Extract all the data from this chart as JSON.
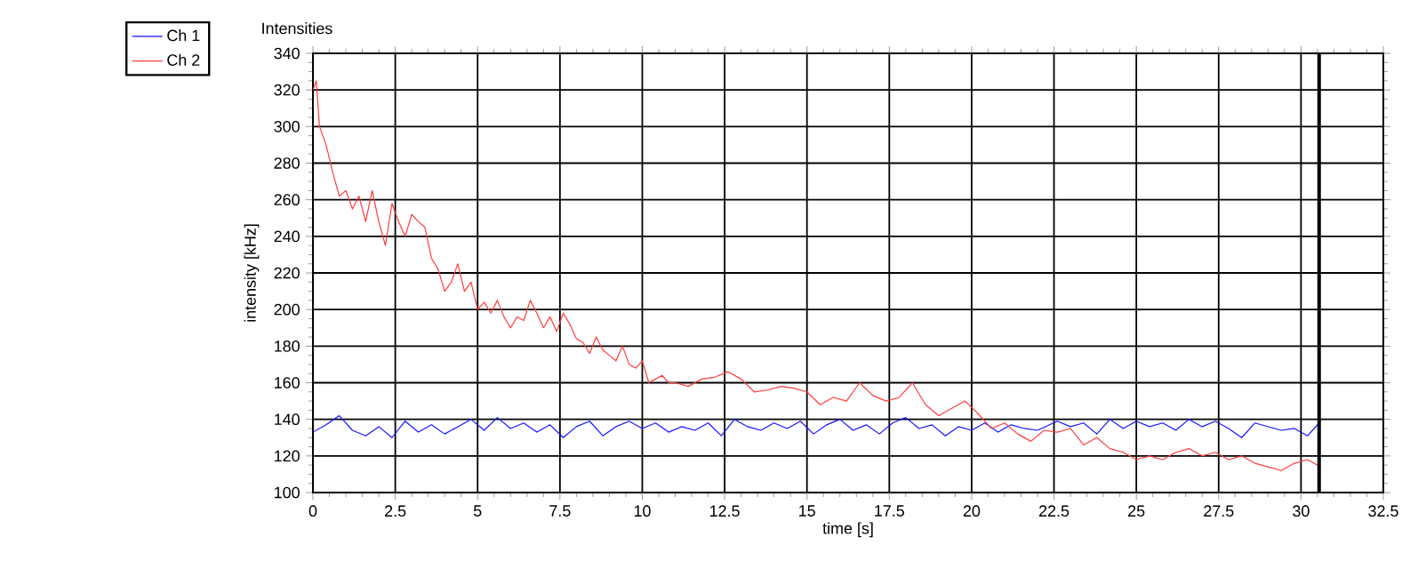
{
  "chart_data": {
    "type": "line",
    "title": "Intensities",
    "xlabel": "time [s]",
    "ylabel": "intensity [kHz]",
    "series": [
      {
        "name": "Ch 1",
        "color": "#1414ff",
        "x": [
          0,
          0.4,
          0.8,
          1.2,
          1.6,
          2.0,
          2.4,
          2.8,
          3.2,
          3.6,
          4.0,
          4.4,
          4.8,
          5.2,
          5.6,
          6.0,
          6.4,
          6.8,
          7.2,
          7.6,
          8.0,
          8.4,
          8.8,
          9.2,
          9.6,
          10.0,
          10.4,
          10.8,
          11.2,
          11.6,
          12.0,
          12.4,
          12.8,
          13.2,
          13.6,
          14.0,
          14.4,
          14.8,
          15.2,
          15.6,
          16.0,
          16.4,
          16.8,
          17.2,
          17.6,
          18.0,
          18.4,
          18.8,
          19.2,
          19.6,
          20.0,
          20.4,
          20.8,
          21.2,
          21.6,
          22.0,
          22.6,
          23.0,
          23.4,
          23.8,
          24.2,
          24.6,
          25.0,
          25.4,
          25.8,
          26.2,
          26.6,
          27.0,
          27.4,
          27.8,
          28.2,
          28.6,
          29.0,
          29.4,
          29.8,
          30.2,
          30.6
        ],
        "values": [
          133,
          137,
          142,
          134,
          131,
          136,
          130,
          139,
          133,
          137,
          132,
          136,
          140,
          134,
          141,
          135,
          138,
          133,
          137,
          130,
          136,
          139,
          131,
          136,
          139,
          135,
          138,
          133,
          136,
          134,
          138,
          131,
          140,
          136,
          134,
          138,
          135,
          139,
          132,
          137,
          140,
          134,
          137,
          132,
          138,
          141,
          135,
          137,
          131,
          136,
          134,
          138,
          133,
          137,
          135,
          134,
          139,
          136,
          138,
          132,
          140,
          135,
          139,
          136,
          138,
          134,
          140,
          136,
          139,
          135,
          130,
          138,
          136,
          134,
          135,
          131,
          139
        ]
      },
      {
        "name": "Ch 2",
        "color": "#ff3c3c",
        "x": [
          0,
          0.1,
          0.2,
          0.4,
          0.6,
          0.8,
          1.0,
          1.2,
          1.4,
          1.6,
          1.8,
          2.0,
          2.2,
          2.4,
          2.6,
          2.8,
          3.0,
          3.2,
          3.4,
          3.6,
          3.8,
          4.0,
          4.2,
          4.4,
          4.6,
          4.8,
          5.0,
          5.2,
          5.4,
          5.6,
          5.8,
          6.0,
          6.2,
          6.4,
          6.6,
          6.8,
          7.0,
          7.2,
          7.4,
          7.6,
          7.8,
          8.0,
          8.2,
          8.4,
          8.6,
          8.8,
          9.0,
          9.2,
          9.4,
          9.6,
          9.8,
          10.0,
          10.2,
          10.4,
          10.6,
          10.8,
          11.0,
          11.4,
          11.8,
          12.2,
          12.6,
          13.0,
          13.4,
          13.8,
          14.2,
          14.6,
          15.0,
          15.4,
          15.8,
          16.2,
          16.6,
          17.0,
          17.4,
          17.8,
          18.2,
          18.6,
          19.0,
          19.4,
          19.8,
          20.2,
          20.6,
          21.0,
          21.4,
          21.8,
          22.2,
          22.6,
          23.0,
          23.4,
          23.8,
          24.2,
          24.6,
          25.0,
          25.4,
          25.8,
          26.2,
          26.6,
          27.0,
          27.4,
          27.8,
          28.2,
          28.6,
          29.0,
          29.4,
          29.8,
          30.2,
          30.6
        ],
        "values": [
          320,
          325,
          300,
          290,
          275,
          262,
          265,
          255,
          262,
          248,
          265,
          248,
          235,
          258,
          248,
          240,
          252,
          248,
          245,
          228,
          222,
          210,
          215,
          225,
          210,
          215,
          200,
          204,
          198,
          205,
          196,
          190,
          196,
          194,
          205,
          198,
          190,
          196,
          188,
          198,
          192,
          184,
          182,
          176,
          185,
          178,
          175,
          172,
          180,
          170,
          168,
          172,
          160,
          162,
          164,
          160,
          160,
          158,
          162,
          163,
          166,
          162,
          155,
          156,
          158,
          157,
          155,
          148,
          152,
          150,
          160,
          153,
          150,
          152,
          160,
          148,
          142,
          146,
          150,
          143,
          135,
          138,
          132,
          128,
          134,
          133,
          135,
          126,
          130,
          124,
          122,
          118,
          120,
          118,
          122,
          124,
          120,
          122,
          118,
          120,
          116,
          114,
          112,
          116,
          118,
          114
        ]
      }
    ],
    "xlim": [
      0,
      32.5
    ],
    "ylim": [
      100,
      340
    ],
    "xticks": [
      0,
      2.5,
      5,
      7.5,
      10,
      12.5,
      15,
      17.5,
      20,
      22.5,
      25,
      27.5,
      30,
      32.5
    ],
    "yticks": [
      100,
      120,
      140,
      160,
      180,
      200,
      220,
      240,
      260,
      280,
      300,
      320,
      340
    ],
    "grid": true,
    "legend": "top left",
    "marker": "none",
    "line_style": "solid",
    "ref_lines": [
      {
        "axis": "x",
        "value": 30.55,
        "color": "#000000"
      }
    ]
  }
}
